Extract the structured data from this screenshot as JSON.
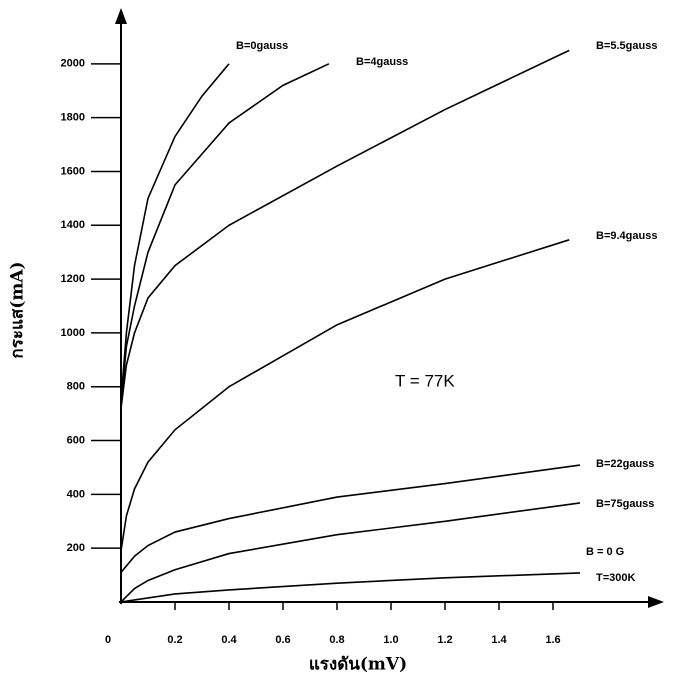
{
  "chart_data": {
    "type": "line",
    "xlabel": "แรงดัน(mV)",
    "ylabel": "กระแส(mA)",
    "annotations": [
      "T =  77K",
      "T=300K"
    ],
    "xlim": [
      0,
      2
    ],
    "ylim": [
      0,
      2200
    ],
    "xticks": [
      0,
      0.2,
      0.4,
      0.6,
      0.8,
      {
        "value": 1,
        "label": "1.0"
      },
      1.2,
      1.4,
      1.6
    ],
    "yticks": [
      200,
      400,
      600,
      800,
      1000,
      1200,
      1400,
      1600,
      1800,
      2000
    ],
    "series": [
      {
        "name": "B=0gauss",
        "color": "#000000",
        "x": [
          0,
          0.02,
          0.05,
          0.1,
          0.2,
          0.3,
          0.4
        ],
        "values": [
          750,
          1000,
          1250,
          1500,
          1730,
          1880,
          2000
        ]
      },
      {
        "name": "B=4gauss",
        "color": "#000000",
        "x": [
          0,
          0.02,
          0.05,
          0.1,
          0.2,
          0.4,
          0.6,
          0.77
        ],
        "values": [
          730,
          950,
          1100,
          1300,
          1550,
          1780,
          1920,
          2000
        ]
      },
      {
        "name": "B=5.5gauss",
        "color": "#000000",
        "x": [
          0,
          0.02,
          0.05,
          0.1,
          0.2,
          0.4,
          0.8,
          1.2,
          1.66
        ],
        "values": [
          720,
          880,
          1000,
          1130,
          1250,
          1400,
          1620,
          1830,
          2050
        ]
      },
      {
        "name": "B=9.4gauss",
        "color": "#000000",
        "x": [
          0,
          0.02,
          0.05,
          0.1,
          0.2,
          0.4,
          0.8,
          1.2,
          1.66
        ],
        "values": [
          190,
          320,
          420,
          520,
          640,
          800,
          1030,
          1200,
          1346
        ]
      },
      {
        "name": "B=22gauss",
        "color": "#000000",
        "x": [
          0,
          0.05,
          0.1,
          0.2,
          0.4,
          0.8,
          1.2,
          1.7
        ],
        "values": [
          110,
          170,
          210,
          260,
          310,
          390,
          440,
          509
        ]
      },
      {
        "name": "B=75gauss",
        "color": "#000000",
        "x": [
          0,
          0.05,
          0.1,
          0.2,
          0.4,
          0.8,
          1.2,
          1.7
        ],
        "values": [
          0,
          50,
          80,
          120,
          180,
          250,
          300,
          368
        ]
      },
      {
        "name": "B = 0 G",
        "color": "#000000",
        "x": [
          0,
          0.2,
          0.4,
          0.8,
          1.2,
          1.7
        ],
        "values": [
          0,
          30,
          45,
          70,
          90,
          108
        ]
      }
    ]
  }
}
